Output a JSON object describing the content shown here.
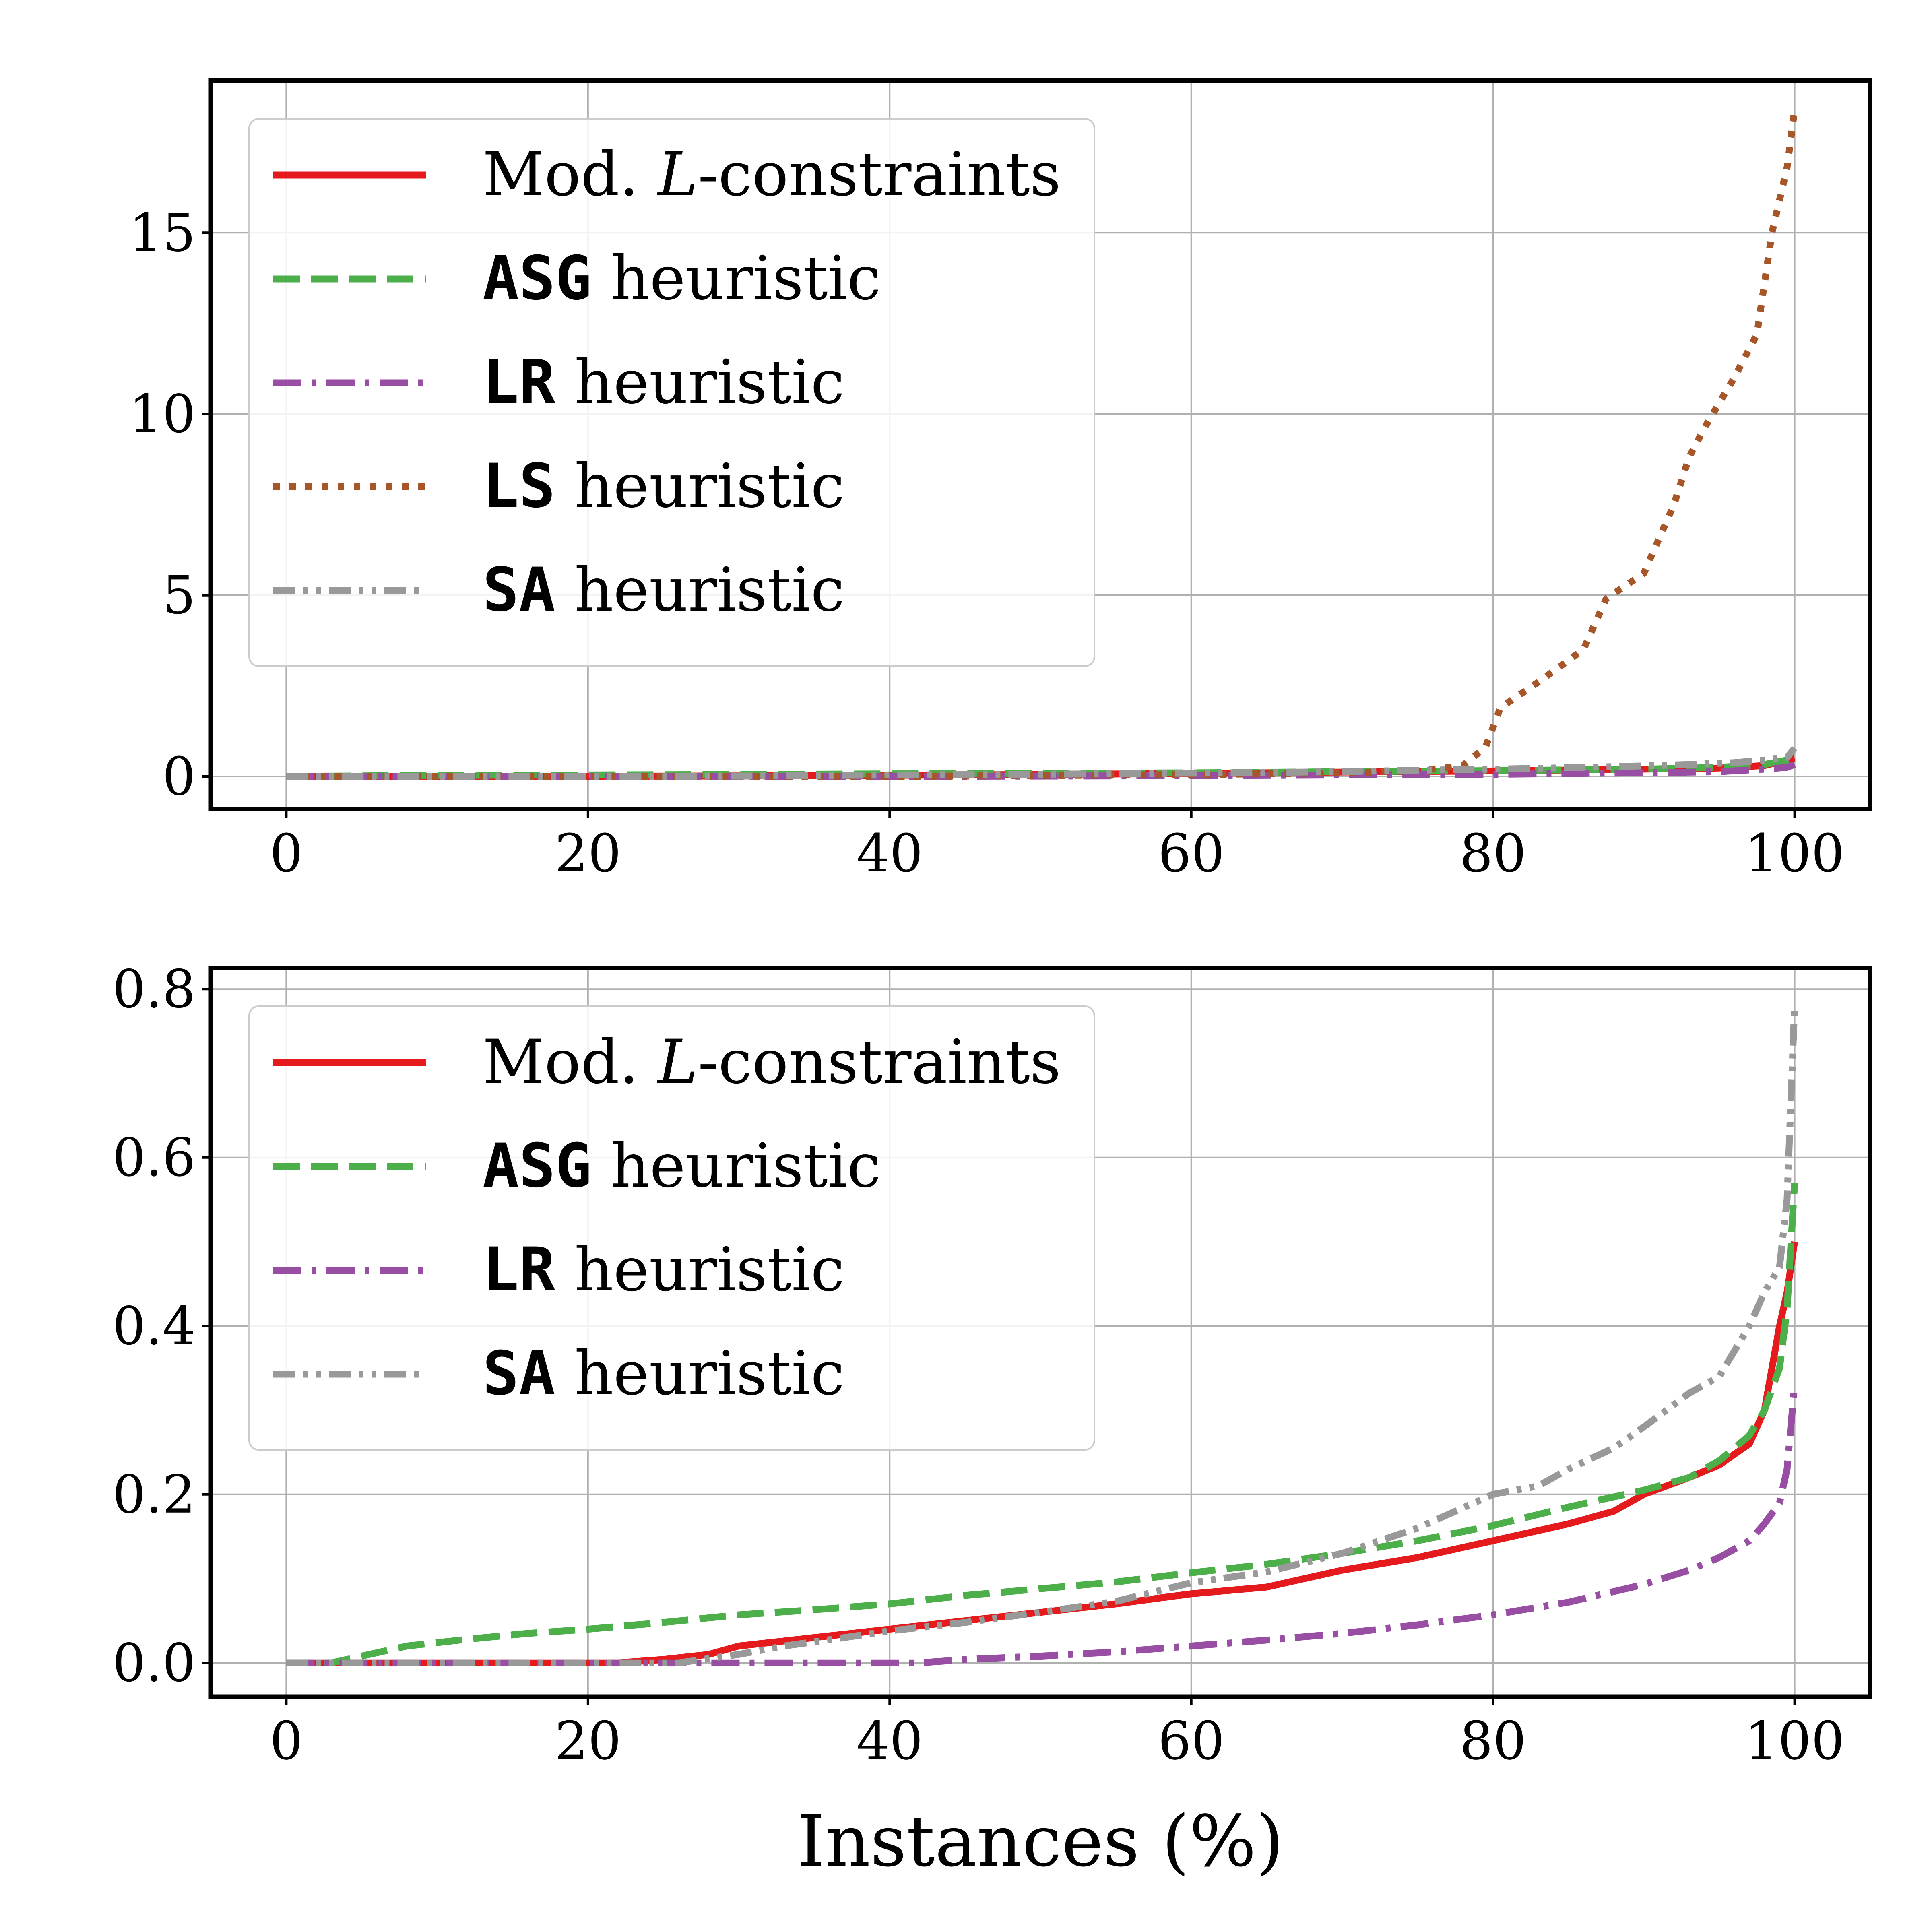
{
  "chart_data": [
    {
      "type": "line",
      "xlabel": "",
      "ylabel": "",
      "xlim": [
        -5,
        105
      ],
      "ylim": [
        -0.9,
        19.2
      ],
      "xticks": [
        0,
        20,
        40,
        60,
        80,
        100
      ],
      "yticks": [
        0,
        5,
        10,
        15
      ],
      "xtick_labels": [
        "0",
        "20",
        "40",
        "60",
        "80",
        "100"
      ],
      "ytick_labels": [
        "0",
        "5",
        "10",
        "15"
      ],
      "grid": true,
      "legend_position": "upper-left",
      "series": [
        {
          "key": "mod",
          "legend_prefix": "Mod. ",
          "legend_italic": "L",
          "legend_suffix": "-constraints",
          "color": "#e41a1c",
          "style": "solid",
          "points": [
            [
              0,
              0
            ],
            [
              20,
              0
            ],
            [
              40,
              0.03
            ],
            [
              60,
              0.08
            ],
            [
              70,
              0.12
            ],
            [
              80,
              0.15
            ],
            [
              90,
              0.2
            ],
            [
              95,
              0.23
            ],
            [
              98,
              0.3
            ],
            [
              99.5,
              0.45
            ],
            [
              100,
              0.5
            ]
          ]
        },
        {
          "key": "asg",
          "legend_mono": "ASG",
          "legend_suffix": " heuristic",
          "color": "#4daf4a",
          "style": "dashed",
          "points": [
            [
              0,
              0
            ],
            [
              4,
              0.01
            ],
            [
              10,
              0.03
            ],
            [
              20,
              0.04
            ],
            [
              40,
              0.07
            ],
            [
              60,
              0.1
            ],
            [
              70,
              0.13
            ],
            [
              80,
              0.16
            ],
            [
              90,
              0.2
            ],
            [
              95,
              0.25
            ],
            [
              98,
              0.33
            ],
            [
              99.5,
              0.45
            ],
            [
              100,
              0.57
            ]
          ]
        },
        {
          "key": "lr",
          "legend_mono": "LR",
          "legend_suffix": " heuristic",
          "color": "#984ea3",
          "style": "dashdot",
          "points": [
            [
              0,
              0
            ],
            [
              40,
              0
            ],
            [
              60,
              0.02
            ],
            [
              70,
              0.04
            ],
            [
              80,
              0.06
            ],
            [
              90,
              0.1
            ],
            [
              95,
              0.13
            ],
            [
              98,
              0.2
            ],
            [
              99.5,
              0.25
            ],
            [
              100,
              0.33
            ]
          ]
        },
        {
          "key": "ls",
          "legend_mono": "LS",
          "legend_suffix": " heuristic",
          "color": "#a65628",
          "style": "dotted",
          "points": [
            [
              0,
              0
            ],
            [
              20,
              0
            ],
            [
              40,
              0
            ],
            [
              60,
              0.05
            ],
            [
              70,
              0.1
            ],
            [
              75,
              0.15
            ],
            [
              78,
              0.3
            ],
            [
              79.5,
              0.8
            ],
            [
              80.5,
              1.9
            ],
            [
              83,
              2.6
            ],
            [
              86,
              3.5
            ],
            [
              87.5,
              4.9
            ],
            [
              90,
              5.6
            ],
            [
              92,
              7.5
            ],
            [
              93,
              8.8
            ],
            [
              94,
              9.6
            ],
            [
              96,
              11.0
            ],
            [
              97.5,
              12.2
            ],
            [
              98.5,
              15.0
            ],
            [
              99.5,
              16.8
            ],
            [
              100,
              18.4
            ]
          ]
        },
        {
          "key": "sa",
          "legend_mono": "SA",
          "legend_suffix": " heuristic",
          "color": "#999999",
          "style": "dashdotdot",
          "points": [
            [
              0,
              0
            ],
            [
              20,
              0
            ],
            [
              30,
              0.01
            ],
            [
              40,
              0.04
            ],
            [
              50,
              0.06
            ],
            [
              60,
              0.09
            ],
            [
              70,
              0.13
            ],
            [
              75,
              0.17
            ],
            [
              80,
              0.2
            ],
            [
              85,
              0.24
            ],
            [
              90,
              0.29
            ],
            [
              93,
              0.33
            ],
            [
              96,
              0.38
            ],
            [
              98,
              0.45
            ],
            [
              99.5,
              0.52
            ],
            [
              100,
              0.78
            ]
          ]
        }
      ]
    },
    {
      "type": "line",
      "xlabel": "Instances (%)",
      "ylabel": "",
      "xlim": [
        -5,
        105
      ],
      "ylim": [
        -0.04,
        0.825
      ],
      "xticks": [
        0,
        20,
        40,
        60,
        80,
        100
      ],
      "yticks": [
        0.0,
        0.2,
        0.4,
        0.6,
        0.8
      ],
      "xtick_labels": [
        "0",
        "20",
        "40",
        "60",
        "80",
        "100"
      ],
      "ytick_labels": [
        "0.0",
        "0.2",
        "0.4",
        "0.6",
        "0.8"
      ],
      "grid": true,
      "legend_position": "upper-left",
      "series": [
        {
          "key": "mod",
          "legend_prefix": "Mod. ",
          "legend_italic": "L",
          "legend_suffix": "-constraints",
          "color": "#e41a1c",
          "style": "solid",
          "points": [
            [
              0,
              0
            ],
            [
              22,
              0
            ],
            [
              25,
              0.004
            ],
            [
              28,
              0.01
            ],
            [
              30,
              0.02
            ],
            [
              35,
              0.03
            ],
            [
              40,
              0.04
            ],
            [
              45,
              0.05
            ],
            [
              50,
              0.06
            ],
            [
              55,
              0.07
            ],
            [
              60,
              0.082
            ],
            [
              65,
              0.09
            ],
            [
              70,
              0.11
            ],
            [
              75,
              0.125
            ],
            [
              80,
              0.145
            ],
            [
              85,
              0.165
            ],
            [
              88,
              0.18
            ],
            [
              90,
              0.2
            ],
            [
              93,
              0.22
            ],
            [
              95,
              0.235
            ],
            [
              97,
              0.26
            ],
            [
              98,
              0.3
            ],
            [
              98.5,
              0.35
            ],
            [
              99,
              0.4
            ],
            [
              99.5,
              0.44
            ],
            [
              100,
              0.5
            ]
          ]
        },
        {
          "key": "asg",
          "legend_mono": "ASG",
          "legend_suffix": " heuristic",
          "color": "#4daf4a",
          "style": "dashed",
          "points": [
            [
              0,
              0
            ],
            [
              3,
              0
            ],
            [
              5,
              0.008
            ],
            [
              8,
              0.02
            ],
            [
              12,
              0.028
            ],
            [
              16,
              0.035
            ],
            [
              20,
              0.04
            ],
            [
              25,
              0.048
            ],
            [
              30,
              0.057
            ],
            [
              35,
              0.063
            ],
            [
              40,
              0.07
            ],
            [
              45,
              0.08
            ],
            [
              50,
              0.088
            ],
            [
              55,
              0.096
            ],
            [
              60,
              0.107
            ],
            [
              65,
              0.117
            ],
            [
              70,
              0.13
            ],
            [
              75,
              0.145
            ],
            [
              80,
              0.163
            ],
            [
              85,
              0.185
            ],
            [
              90,
              0.205
            ],
            [
              93,
              0.22
            ],
            [
              95,
              0.24
            ],
            [
              97,
              0.27
            ],
            [
              98,
              0.3
            ],
            [
              99,
              0.35
            ],
            [
              99.5,
              0.42
            ],
            [
              100,
              0.57
            ]
          ]
        },
        {
          "key": "lr",
          "legend_mono": "LR",
          "legend_suffix": " heuristic",
          "color": "#984ea3",
          "style": "dashdot",
          "points": [
            [
              0,
              0
            ],
            [
              42,
              0
            ],
            [
              45,
              0.004
            ],
            [
              50,
              0.008
            ],
            [
              55,
              0.013
            ],
            [
              60,
              0.02
            ],
            [
              65,
              0.027
            ],
            [
              70,
              0.035
            ],
            [
              75,
              0.045
            ],
            [
              80,
              0.057
            ],
            [
              85,
              0.072
            ],
            [
              90,
              0.093
            ],
            [
              93,
              0.11
            ],
            [
              95,
              0.125
            ],
            [
              97,
              0.145
            ],
            [
              98,
              0.165
            ],
            [
              99,
              0.19
            ],
            [
              99.5,
              0.23
            ],
            [
              100,
              0.33
            ]
          ]
        },
        {
          "key": "sa",
          "legend_mono": "SA",
          "legend_suffix": " heuristic",
          "color": "#999999",
          "style": "dashdotdot",
          "points": [
            [
              0,
              0
            ],
            [
              26,
              0
            ],
            [
              30,
              0.01
            ],
            [
              33,
              0.02
            ],
            [
              37,
              0.03
            ],
            [
              40,
              0.038
            ],
            [
              45,
              0.048
            ],
            [
              50,
              0.06
            ],
            [
              55,
              0.073
            ],
            [
              60,
              0.095
            ],
            [
              65,
              0.108
            ],
            [
              70,
              0.13
            ],
            [
              75,
              0.16
            ],
            [
              80,
              0.2
            ],
            [
              83,
              0.21
            ],
            [
              85,
              0.23
            ],
            [
              88,
              0.255
            ],
            [
              90,
              0.28
            ],
            [
              93,
              0.32
            ],
            [
              95,
              0.34
            ],
            [
              96,
              0.37
            ],
            [
              97,
              0.4
            ],
            [
              98,
              0.44
            ],
            [
              99,
              0.47
            ],
            [
              99.5,
              0.55
            ],
            [
              100,
              0.78
            ]
          ]
        }
      ]
    }
  ]
}
